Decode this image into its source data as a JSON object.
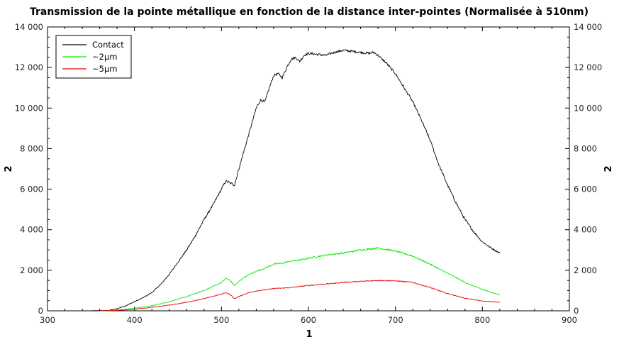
{
  "chart_data": {
    "type": "line",
    "title": "Transmission de la pointe métallique en fonction de la distance inter-pointes (Normalisée à 510nm)",
    "xlabel": "1",
    "ylabel": "2",
    "y2label": "2",
    "xlim": [
      300,
      900
    ],
    "ylim": [
      0,
      14000
    ],
    "xticks": [
      300,
      400,
      500,
      600,
      700,
      800,
      900
    ],
    "xtick_labels": [
      "300",
      "400",
      "500",
      "600",
      "700",
      "800",
      "900"
    ],
    "yticks": [
      0,
      2000,
      4000,
      6000,
      8000,
      10000,
      12000,
      14000
    ],
    "ytick_labels": [
      "0",
      "2 000",
      "4 000",
      "6 000",
      "8 000",
      "10 000",
      "12 000",
      "14 000"
    ],
    "grid": false,
    "legend_position": "top-left",
    "series": [
      {
        "name": "Contact",
        "color": "#000000",
        "x": [
          350,
          370,
          380,
          390,
          400,
          410,
          420,
          430,
          440,
          450,
          460,
          470,
          480,
          490,
          500,
          505,
          510,
          515,
          520,
          530,
          540,
          545,
          550,
          555,
          560,
          565,
          570,
          575,
          580,
          585,
          590,
          595,
          600,
          610,
          620,
          630,
          640,
          650,
          660,
          670,
          675,
          680,
          690,
          700,
          710,
          720,
          730,
          740,
          750,
          760,
          770,
          780,
          790,
          800,
          810,
          820
        ],
        "y": [
          0,
          20,
          100,
          250,
          450,
          650,
          900,
          1300,
          1800,
          2400,
          3000,
          3700,
          4500,
          5200,
          6000,
          6400,
          6300,
          6200,
          7000,
          8500,
          10000,
          10400,
          10300,
          11000,
          11600,
          11700,
          11500,
          12000,
          12400,
          12500,
          12300,
          12600,
          12700,
          12650,
          12600,
          12750,
          12850,
          12800,
          12750,
          12700,
          12750,
          12600,
          12200,
          11700,
          11000,
          10300,
          9400,
          8400,
          7200,
          6200,
          5300,
          4500,
          3900,
          3400,
          3100,
          2850
        ]
      },
      {
        "name": "~2µm",
        "color": "#00ee00",
        "x": [
          360,
          380,
          400,
          420,
          440,
          460,
          480,
          500,
          505,
          510,
          515,
          520,
          530,
          540,
          550,
          560,
          570,
          580,
          590,
          600,
          620,
          640,
          660,
          680,
          700,
          720,
          740,
          760,
          780,
          800,
          820
        ],
        "y": [
          0,
          30,
          120,
          250,
          450,
          700,
          1000,
          1400,
          1600,
          1500,
          1250,
          1450,
          1750,
          1950,
          2100,
          2300,
          2350,
          2450,
          2500,
          2600,
          2750,
          2850,
          3000,
          3100,
          2950,
          2700,
          2300,
          1850,
          1400,
          1050,
          780
        ]
      },
      {
        "name": "~5µm",
        "color": "#ee0000",
        "x": [
          360,
          380,
          400,
          420,
          440,
          460,
          480,
          500,
          505,
          510,
          515,
          520,
          530,
          540,
          550,
          560,
          570,
          580,
          590,
          600,
          620,
          640,
          660,
          680,
          700,
          720,
          740,
          760,
          780,
          800,
          820
        ],
        "y": [
          0,
          20,
          80,
          170,
          280,
          420,
          600,
          820,
          900,
          800,
          600,
          700,
          880,
          980,
          1030,
          1100,
          1120,
          1150,
          1200,
          1250,
          1320,
          1400,
          1450,
          1500,
          1480,
          1400,
          1150,
          850,
          620,
          480,
          420
        ]
      }
    ]
  }
}
